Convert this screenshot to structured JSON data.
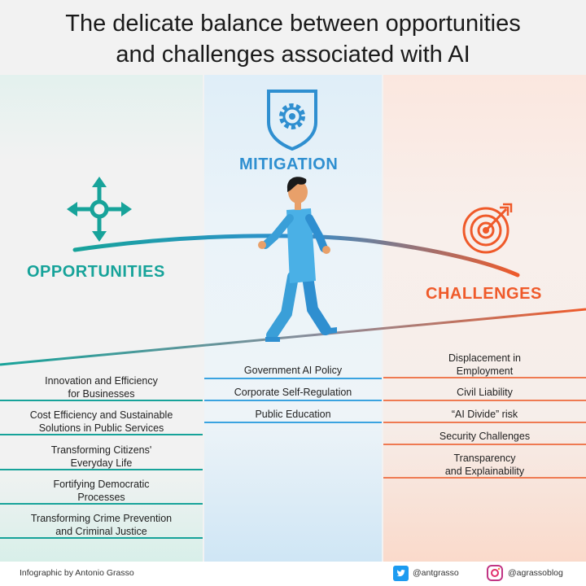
{
  "title": {
    "line1": "The delicate balance between opportunities",
    "line2": "and challenges associated with AI"
  },
  "columns": {
    "opportunities": {
      "heading": "OPPORTUNITIES",
      "icon": "move-arrows-icon",
      "color": "#17a39a",
      "items": [
        {
          "line1": "Innovation and Efficiency",
          "line2": "for Businesses"
        },
        {
          "line1": "Cost Efficiency and Sustainable",
          "line2": "Solutions in Public Services"
        },
        {
          "line1": "Transforming Citizens'",
          "line2": "Everyday Life"
        },
        {
          "line1": "Fortifying Democratic",
          "line2": "Processes"
        },
        {
          "line1": "Transforming Crime Prevention",
          "line2": "and Criminal Justice"
        }
      ]
    },
    "mitigation": {
      "heading": "MITIGATION",
      "icon": "shield-gear-icon",
      "color": "#2f8fd0",
      "items": [
        {
          "line1": "Government AI Policy"
        },
        {
          "line1": "Corporate Self-Regulation"
        },
        {
          "line1": "Public Education"
        }
      ]
    },
    "challenges": {
      "heading": "CHALLENGES",
      "icon": "target-icon",
      "color": "#ef5a2a",
      "items": [
        {
          "line1": "Displacement in",
          "line2": "Employment"
        },
        {
          "line1": "Civil Liability"
        },
        {
          "line1": "“AI Divide” risk"
        },
        {
          "line1": "Security Challenges"
        },
        {
          "line1": "Transparency",
          "line2": "and Explainability"
        }
      ]
    }
  },
  "footer": {
    "credit": "Infographic by Antonio Grasso",
    "twitter": "@antgrasso",
    "instagram": "@agrassoblog"
  }
}
